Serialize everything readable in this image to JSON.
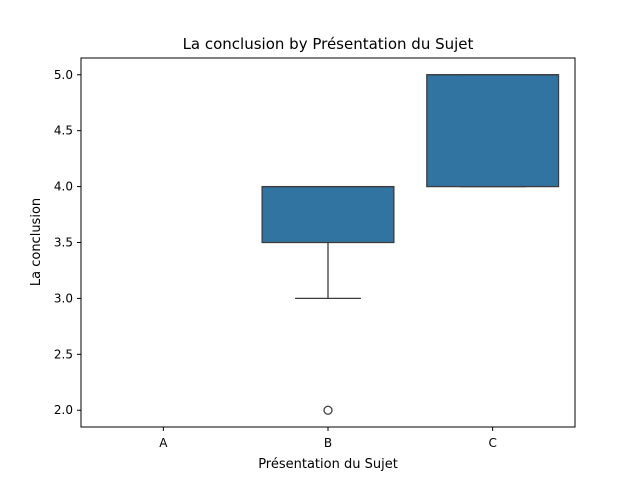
{
  "chart_data": {
    "type": "box",
    "title": "La conclusion by Présentation du Sujet",
    "xlabel": "Présentation du Sujet",
    "ylabel": "La conclusion",
    "categories": [
      "A",
      "B",
      "C"
    ],
    "ylim": [
      1.85,
      5.15
    ],
    "yticks": [
      "2.0",
      "2.5",
      "3.0",
      "3.5",
      "4.0",
      "4.5",
      "5.0"
    ],
    "boxes": [
      null,
      {
        "whisker_low": 3.0,
        "q1": 3.5,
        "median": 4.0,
        "q3": 4.0,
        "whisker_high": 4.0,
        "outliers": [
          2.0
        ]
      },
      {
        "whisker_low": 4.0,
        "q1": 4.0,
        "median": 5.0,
        "q3": 5.0,
        "whisker_high": 5.0,
        "outliers": []
      }
    ],
    "grid": false,
    "legend": "none"
  },
  "colors": {
    "box_fill": "#3274a1",
    "line": "#3d3d3d",
    "axis": "#000000"
  }
}
